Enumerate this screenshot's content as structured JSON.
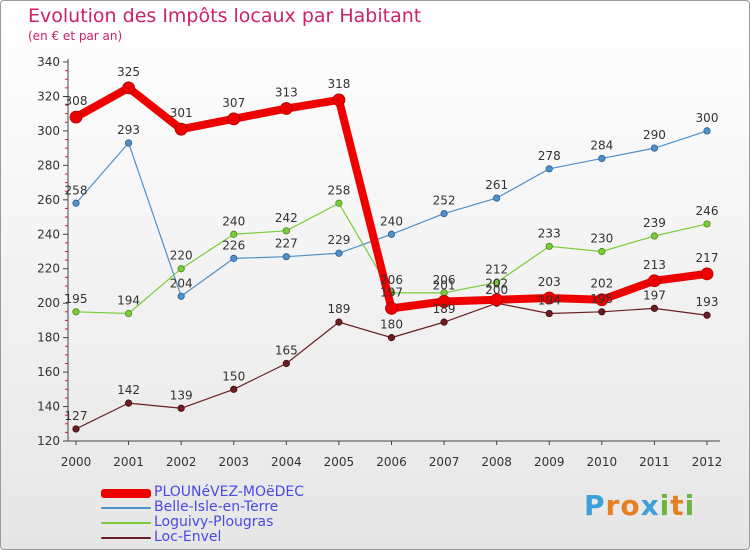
{
  "header": {
    "title": "Evolution des Impôts locaux par Habitant",
    "subtitle": "(en € et par an)"
  },
  "chart_data": {
    "type": "line",
    "title": "Evolution des Impôts locaux par Habitant",
    "subtitle": "(en € et par an)",
    "xlabel": "",
    "ylabel": "",
    "categories": [
      "2000",
      "2001",
      "2002",
      "2003",
      "2004",
      "2005",
      "2006",
      "2007",
      "2008",
      "2009",
      "2010",
      "2011",
      "2012"
    ],
    "ylim": [
      120,
      340
    ],
    "yticks": [
      120,
      140,
      160,
      180,
      200,
      220,
      240,
      260,
      280,
      300,
      320,
      340
    ],
    "grid": false,
    "legend_position": "bottom-left",
    "series": [
      {
        "name": "PLOUNéVEZ-MOëDEC",
        "color": "#ee0000",
        "values": [
          308,
          325,
          301,
          307,
          313,
          318,
          197,
          201,
          202,
          203,
          202,
          213,
          217
        ]
      },
      {
        "name": "Belle-Isle-en-Terre",
        "color": "#4f90c8",
        "values": [
          258,
          293,
          204,
          226,
          227,
          229,
          240,
          252,
          261,
          278,
          284,
          290,
          300
        ]
      },
      {
        "name": "Loguivy-Plougras",
        "color": "#7acc3a",
        "values": [
          195,
          194,
          220,
          240,
          242,
          258,
          206,
          206,
          212,
          233,
          230,
          239,
          246
        ]
      },
      {
        "name": "Loc-Envel",
        "color": "#6b1f22",
        "values": [
          127,
          142,
          139,
          150,
          165,
          189,
          180,
          189,
          200,
          194,
          195,
          197,
          193
        ]
      }
    ]
  },
  "logo": {
    "letters": [
      "P",
      "r",
      "o",
      "x",
      "i",
      "t",
      "i"
    ],
    "colors": [
      "#3da0dc",
      "#e67e22",
      "#e67e22",
      "#3da0dc",
      "#6cb43f",
      "#e67e22",
      "#6cb43f"
    ]
  }
}
